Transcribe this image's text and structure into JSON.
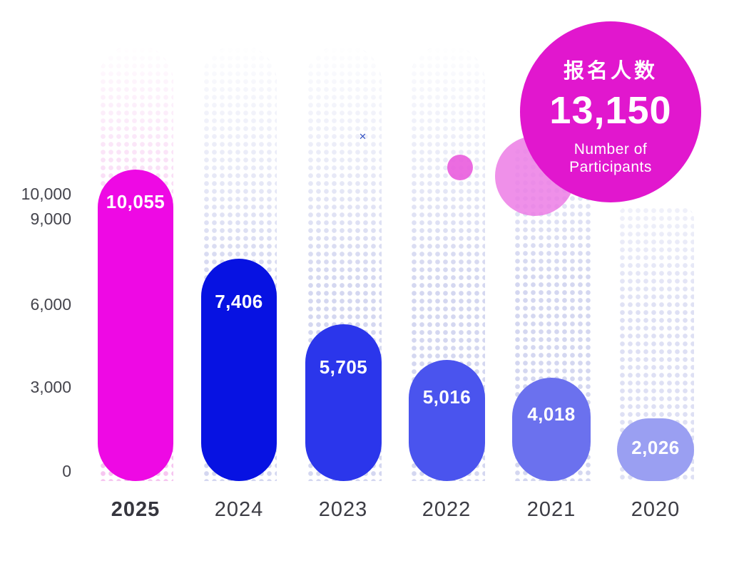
{
  "chart_data": {
    "type": "bar",
    "title": "报名人数 Number of Participants",
    "xlabel": "",
    "ylabel": "",
    "categories": [
      "2025",
      "2024",
      "2023",
      "2022",
      "2021",
      "2020"
    ],
    "values": [
      10055,
      7406,
      5705,
      5016,
      4018,
      2026
    ],
    "ylim": [
      0,
      10000
    ],
    "grid": false,
    "legend": false,
    "yticks": [
      "10,000",
      "9,000",
      "6,000",
      "3,000",
      "0"
    ],
    "highlight_category": "2025",
    "items": [
      {
        "year": "2025",
        "value": 10055,
        "value_label": "10,055",
        "color": "#ee09e4",
        "dot_color": "#f6c6f0",
        "highlight": true
      },
      {
        "year": "2024",
        "value": 7406,
        "value_label": "7,406",
        "color": "#0712e2",
        "dot_color": "#d4d7f0",
        "highlight": false
      },
      {
        "year": "2023",
        "value": 5705,
        "value_label": "5,705",
        "color": "#2b36eb",
        "dot_color": "#d4d7f0",
        "highlight": false
      },
      {
        "year": "2022",
        "value": 5016,
        "value_label": "5,016",
        "color": "#4a54ee",
        "dot_color": "#d4d7f0",
        "highlight": false
      },
      {
        "year": "2021",
        "value": 4018,
        "value_label": "4,018",
        "color": "#6b71ee",
        "dot_color": "#d4d7f0",
        "highlight": false
      },
      {
        "year": "2020",
        "value": 2026,
        "value_label": "2,026",
        "color": "#9a9ff2",
        "dot_color": "#dee0f4",
        "highlight": false
      }
    ]
  },
  "badge": {
    "title": "报名人数",
    "value": "13,150",
    "subtitle_line1": "Number of",
    "subtitle_line2": "Participants",
    "color": "#e117ce"
  },
  "decor": {
    "sparkle_glyph": "✕",
    "small_circle_color": "#e95cdd",
    "large_circle_color": "#ec78e4"
  }
}
